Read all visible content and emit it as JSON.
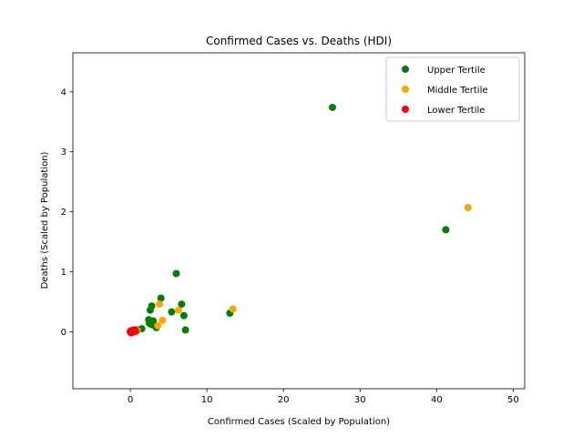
{
  "chart_data": {
    "type": "scatter",
    "title": "Confirmed Cases vs. Deaths (HDI)",
    "xlabel": "Confirmed Cases (Scaled by Population)",
    "ylabel": "Deaths (Scaled by Population)",
    "xlim": [
      -7.5,
      51.5
    ],
    "ylim": [
      -0.95,
      4.65
    ],
    "xticks": [
      0,
      10,
      20,
      30,
      40,
      50
    ],
    "yticks": [
      0,
      1,
      2,
      3,
      4
    ],
    "grid": false,
    "legend_position": "upper right",
    "series": [
      {
        "name": "Upper Tertile",
        "color": "#008000",
        "points": [
          [
            26.4,
            3.74
          ],
          [
            41.2,
            1.7
          ],
          [
            6.0,
            0.97
          ],
          [
            13.0,
            0.31
          ],
          [
            4.0,
            0.56
          ],
          [
            6.7,
            0.46
          ],
          [
            2.8,
            0.43
          ],
          [
            2.6,
            0.36
          ],
          [
            5.4,
            0.33
          ],
          [
            7.0,
            0.27
          ],
          [
            2.4,
            0.2
          ],
          [
            3.0,
            0.18
          ],
          [
            2.5,
            0.14
          ],
          [
            3.2,
            0.1
          ],
          [
            3.4,
            0.07
          ],
          [
            1.5,
            0.05
          ],
          [
            7.2,
            0.03
          ],
          [
            0.6,
            0.02
          ],
          [
            2.8,
            0.12
          ],
          [
            1.0,
            0.03
          ]
        ]
      },
      {
        "name": "Middle Tertile",
        "color": "#ffa500",
        "points": [
          [
            44.1,
            2.07
          ],
          [
            13.4,
            0.38
          ],
          [
            3.8,
            0.46
          ],
          [
            6.3,
            0.36
          ],
          [
            4.2,
            0.19
          ],
          [
            3.6,
            0.1
          ],
          [
            0.5,
            0.03
          ],
          [
            0.9,
            0.02
          ]
        ]
      },
      {
        "name": "Lower Tertile",
        "color": "#ff0000",
        "points": [
          [
            0.0,
            0.0
          ],
          [
            0.1,
            0.01
          ],
          [
            0.2,
            0.0
          ],
          [
            0.3,
            0.02
          ],
          [
            0.4,
            0.01
          ],
          [
            0.5,
            0.0
          ],
          [
            0.6,
            0.03
          ],
          [
            0.15,
            0.02
          ],
          [
            0.25,
            -0.01
          ],
          [
            0.35,
            0.0
          ],
          [
            0.05,
            0.01
          ],
          [
            0.45,
            0.02
          ],
          [
            0.7,
            0.01
          ],
          [
            0.1,
            -0.02
          ],
          [
            0.3,
            0.0
          ]
        ]
      }
    ]
  }
}
